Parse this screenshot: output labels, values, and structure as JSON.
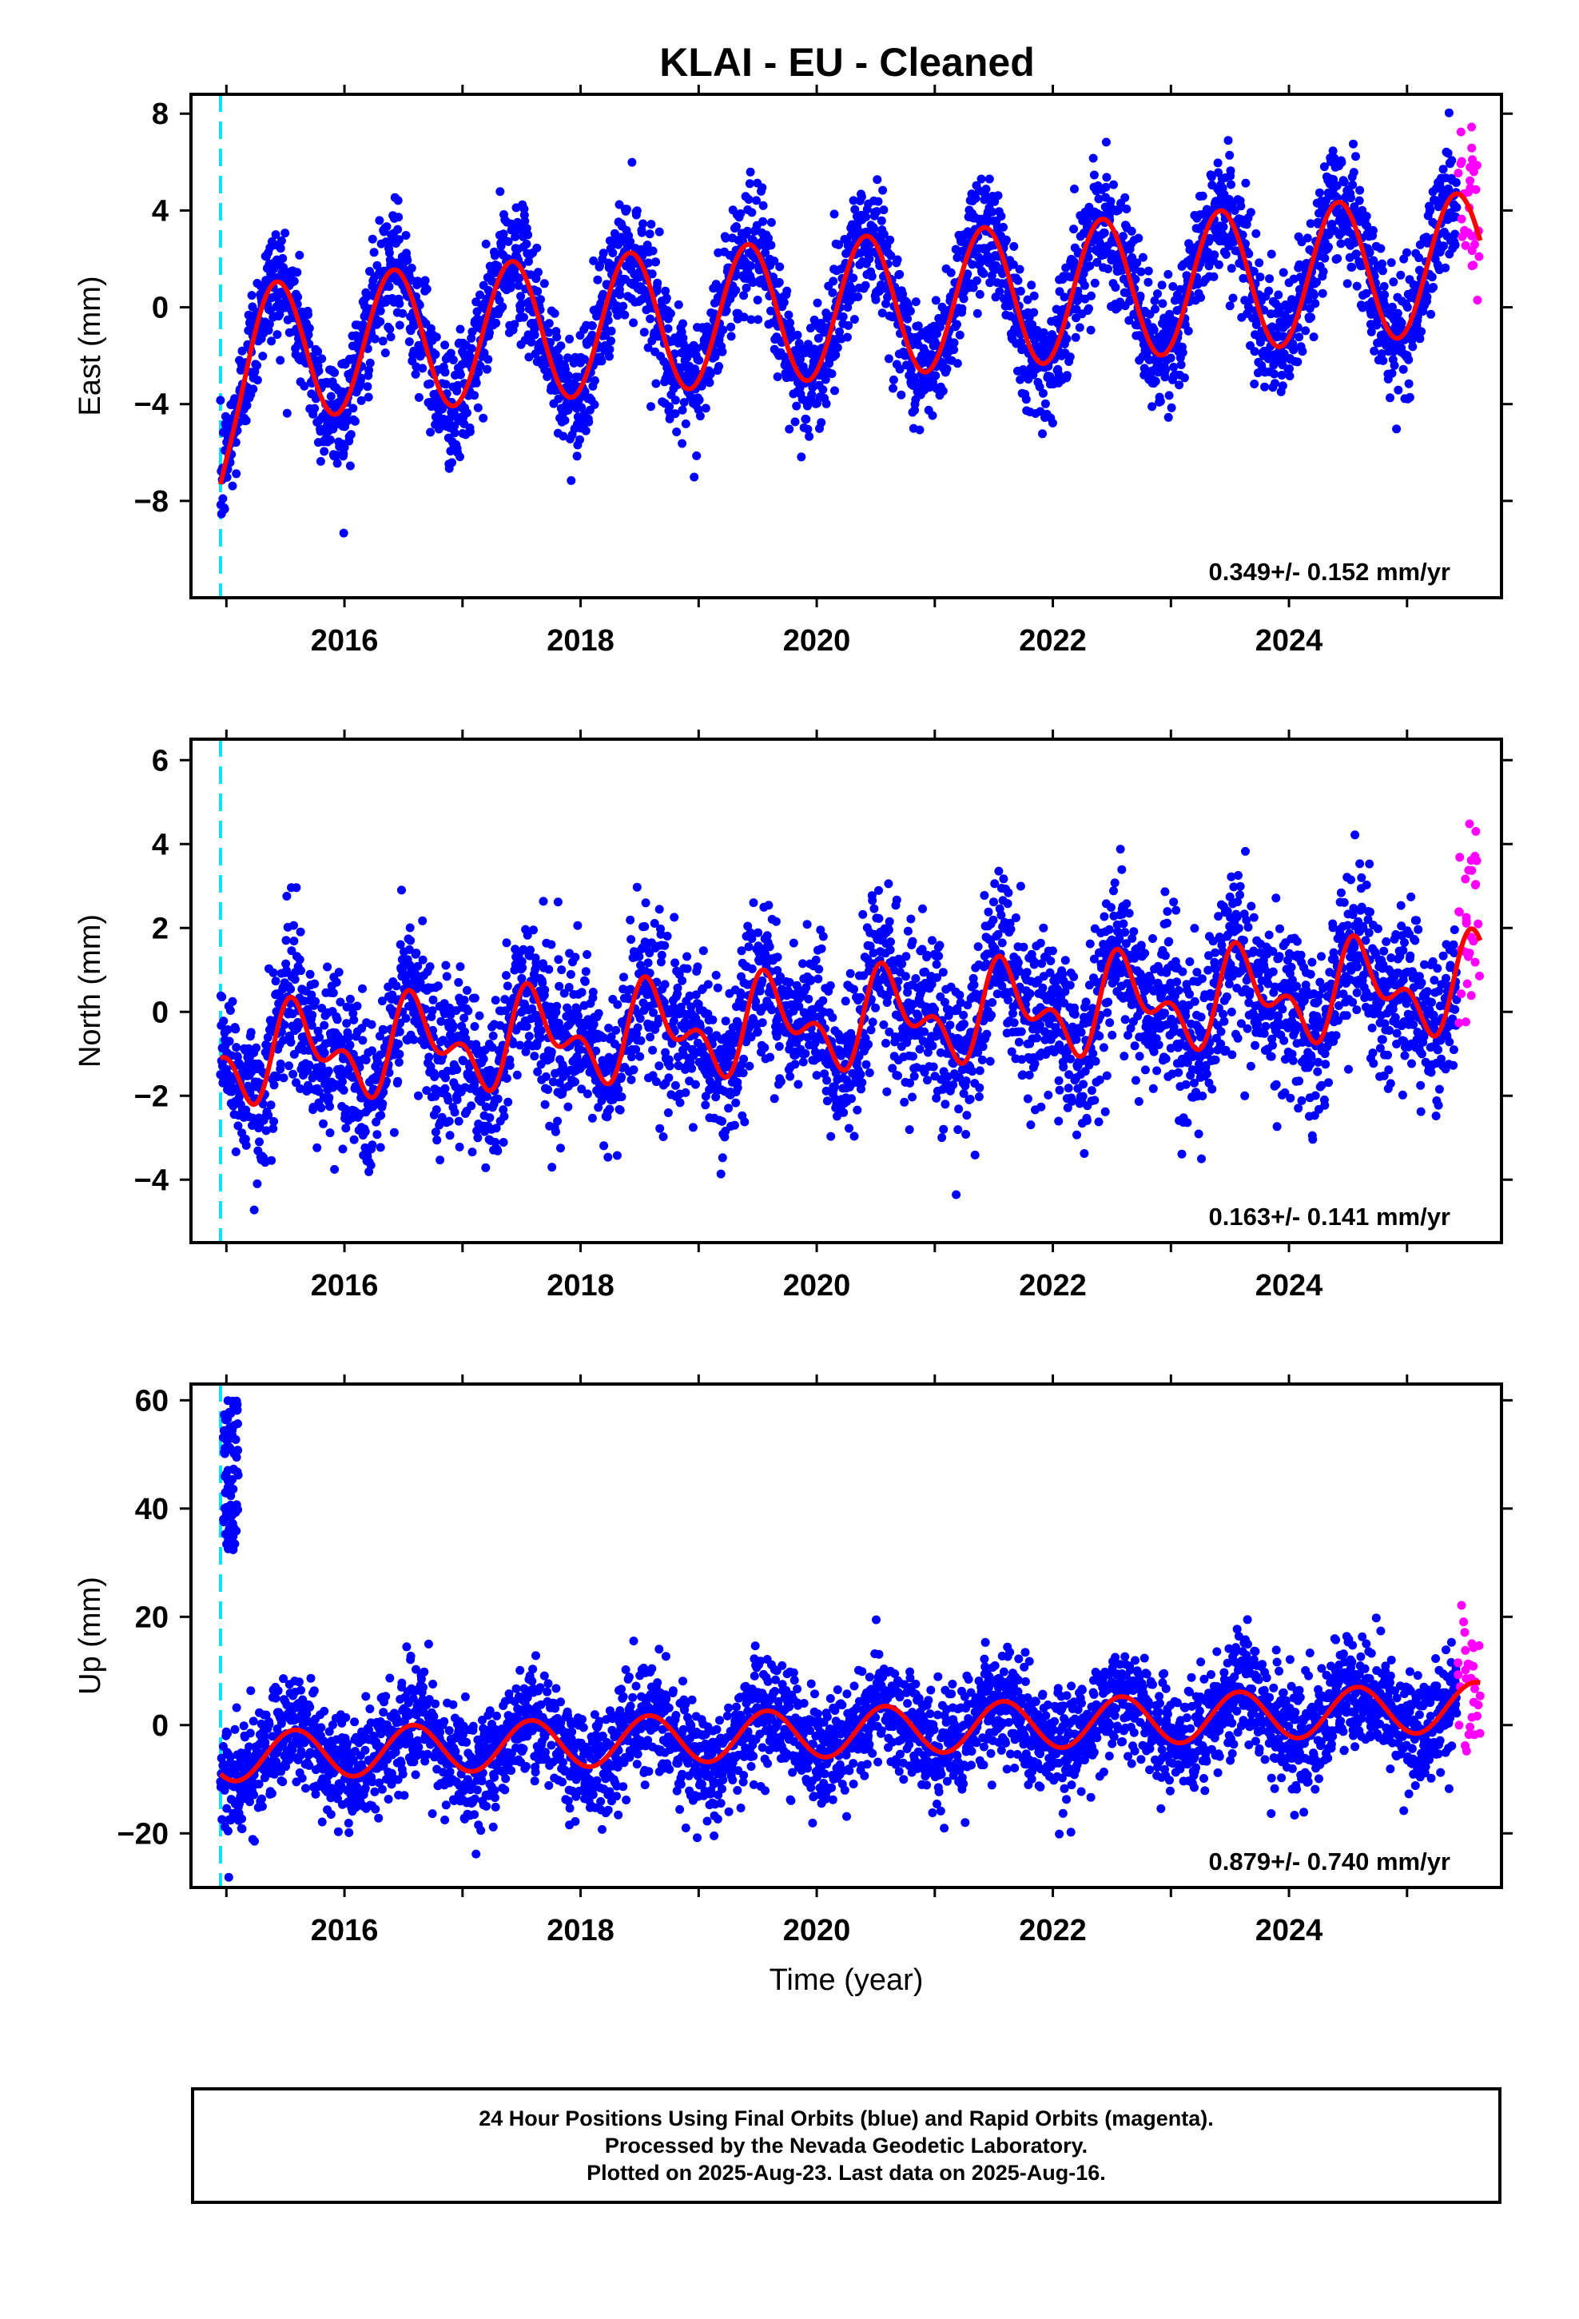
{
  "title": "KLAI  - EU - Cleaned",
  "colors": {
    "final_orbits": "#0000ff",
    "rapid_orbits": "#ff00ff",
    "model_fit": "#ff0000",
    "event_marker": "#00e5ff",
    "axes": "#000000",
    "background": "#ffffff"
  },
  "chart_data": [
    {
      "type": "scatter",
      "panel": "east",
      "ylabel": "East (mm)",
      "xlabel": "",
      "xlim": [
        2014.7,
        2025.8
      ],
      "ylim": [
        -12,
        8.8
      ],
      "x_ticks": [
        2016,
        2018,
        2020,
        2022,
        2024
      ],
      "y_ticks": [
        8,
        4,
        0,
        -4,
        -8
      ],
      "grid": false,
      "rate_text": "0.349+/- 0.152 mm/yr",
      "event_marker_x": 2014.95,
      "model": {
        "trend_mm_per_yr": 0.349,
        "intercept_at_2020": -0.1,
        "annual_amplitude": 2.9,
        "peak_phase_year": 0.42,
        "noise_sigma": 1.25,
        "initial_offset": {
          "start": 2014.95,
          "value": -7.6,
          "decay_years": 0.12
        }
      },
      "series": [
        {
          "name": "Final Orbits",
          "color": "#0000ff",
          "x_range": [
            2014.95,
            2025.42
          ],
          "n_points": 3600
        },
        {
          "name": "Rapid Orbits",
          "color": "#ff00ff",
          "x_range": [
            2025.43,
            2025.62
          ],
          "n_points": 30
        },
        {
          "name": "Model fit",
          "color": "#ff0000",
          "kind": "line"
        }
      ]
    },
    {
      "type": "scatter",
      "panel": "north",
      "ylabel": "North (mm)",
      "xlabel": "",
      "xlim": [
        2014.7,
        2025.8
      ],
      "ylim": [
        -5.5,
        6.5
      ],
      "x_ticks": [
        2016,
        2018,
        2020,
        2022,
        2024
      ],
      "y_ticks": [
        6,
        4,
        2,
        0,
        -2,
        -4
      ],
      "grid": false,
      "rate_text": "0.163+/- 0.141 mm/yr",
      "event_marker_x": 2014.95,
      "model": {
        "trend_mm_per_yr": 0.163,
        "intercept_at_2020": -0.25,
        "annual_amplitude": 0.85,
        "semiannual_amplitude": 0.6,
        "peak_phase_year": 0.62,
        "noise_sigma": 0.95
      },
      "series": [
        {
          "name": "Final Orbits",
          "color": "#0000ff",
          "x_range": [
            2014.95,
            2025.42
          ],
          "n_points": 3600
        },
        {
          "name": "Rapid Orbits",
          "color": "#ff00ff",
          "x_range": [
            2025.43,
            2025.62
          ],
          "n_points": 30
        },
        {
          "name": "Model fit",
          "color": "#ff0000",
          "kind": "line"
        }
      ]
    },
    {
      "type": "scatter",
      "panel": "up",
      "ylabel": "Up (mm)",
      "xlabel": "Time (year)",
      "xlim": [
        2014.7,
        2025.8
      ],
      "ylim": [
        -30,
        63
      ],
      "x_ticks": [
        2016,
        2018,
        2020,
        2022,
        2024
      ],
      "y_ticks": [
        60,
        40,
        20,
        0,
        -20
      ],
      "grid": false,
      "rate_text": "0.879+/- 0.740 mm/yr",
      "event_marker_x": 2014.95,
      "model": {
        "trend_mm_per_yr": 0.879,
        "intercept_at_2020": -1.5,
        "annual_amplitude": 4.5,
        "peak_phase_year": 0.58,
        "noise_sigma": 5.0,
        "early_outliers": {
          "x_range": [
            2014.97,
            2015.1
          ],
          "y_range": [
            32,
            60
          ],
          "n_points": 90
        }
      },
      "series": [
        {
          "name": "Final Orbits",
          "color": "#0000ff",
          "x_range": [
            2014.95,
            2025.42
          ],
          "n_points": 3600
        },
        {
          "name": "Rapid Orbits",
          "color": "#ff00ff",
          "x_range": [
            2025.43,
            2025.62
          ],
          "n_points": 30
        },
        {
          "name": "Model fit",
          "color": "#ff0000",
          "kind": "line"
        }
      ]
    }
  ],
  "footer": {
    "line1": "24 Hour Positions Using Final Orbits (blue) and Rapid Orbits (magenta).",
    "line2": "Processed by the Nevada Geodetic Laboratory.",
    "line3": "Plotted on 2025-Aug-23. Last data on 2025-Aug-16."
  }
}
